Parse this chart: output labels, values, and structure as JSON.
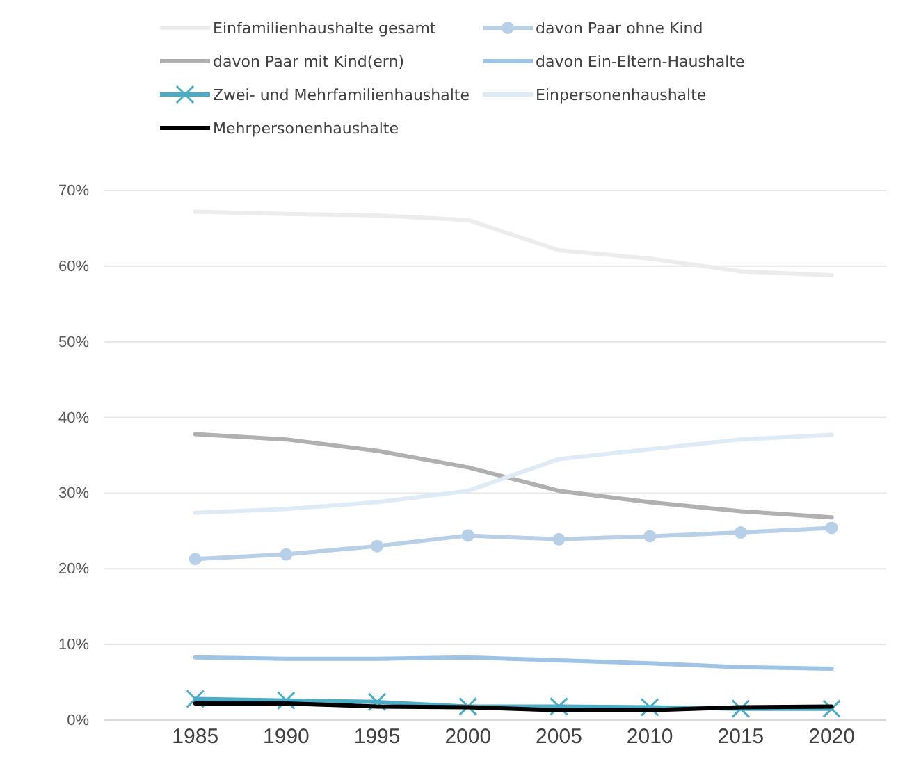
{
  "chart_data": {
    "type": "line",
    "x": [
      1985,
      1990,
      1995,
      2000,
      2005,
      2010,
      2015,
      2020
    ],
    "xlim": [
      1980,
      2023
    ],
    "xticks": [
      1985,
      1990,
      1995,
      2000,
      2005,
      2010,
      2015,
      2020
    ],
    "ylim": [
      0,
      70
    ],
    "yticks": [
      {
        "value": 0,
        "label": "0%"
      },
      {
        "value": 10,
        "label": "10%"
      },
      {
        "value": 20,
        "label": "20%"
      },
      {
        "value": 30,
        "label": "30%"
      },
      {
        "value": 40,
        "label": "40%"
      },
      {
        "value": 50,
        "label": "50%"
      },
      {
        "value": 60,
        "label": "60%"
      },
      {
        "value": 70,
        "label": "70%"
      }
    ],
    "grid": "y",
    "legend": "top",
    "marker": "none",
    "series": [
      {
        "name": "Einfamilienhaushalte gesamt",
        "color": "#ececec",
        "values": [
          67.2,
          66.9,
          66.7,
          66.1,
          62.1,
          61,
          59.3,
          58.8
        ]
      },
      {
        "name": "davon Paar ohne Kind",
        "color": "#b8cfe8",
        "marker": "circle",
        "values": [
          21.3,
          21.9,
          23,
          24.4,
          23.9,
          24.3,
          24.8,
          25.4
        ]
      },
      {
        "name": "davon Paar mit Kind(ern)",
        "color": "#b0b0b0",
        "values": [
          37.8,
          37.1,
          35.6,
          33.4,
          30.3,
          28.8,
          27.6,
          26.8
        ]
      },
      {
        "name": "davon Ein-Eltern-Haushalte",
        "color": "#9dc3e6",
        "values": [
          8.3,
          8.1,
          8.1,
          8.3,
          7.9,
          7.5,
          7,
          6.8
        ]
      },
      {
        "name": "Zwei- und Mehrfamilienhaushalte",
        "color": "#4bacc6",
        "marker": "cross",
        "values": [
          2.8,
          2.6,
          2.4,
          1.8,
          1.8,
          1.7,
          1.5,
          1.5
        ]
      },
      {
        "name": "Einpersonenhaushalte",
        "color": "#deebf7",
        "values": [
          27.4,
          27.9,
          28.8,
          30.3,
          34.5,
          35.8,
          37.1,
          37.7
        ]
      },
      {
        "name": "Mehrpersonenhaushalte",
        "color": "#000000",
        "values": [
          2.2,
          2.2,
          1.8,
          1.7,
          1.3,
          1.3,
          1.7,
          1.8
        ]
      }
    ]
  }
}
